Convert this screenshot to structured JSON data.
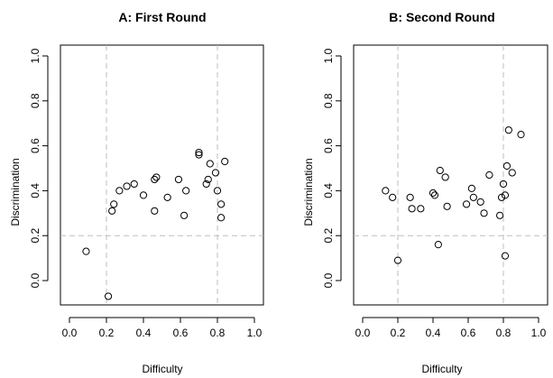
{
  "chart_data": [
    {
      "type": "scatter",
      "title": "A: First Round",
      "xlabel": "Difficulty",
      "ylabel": "Discrimination",
      "xlim": [
        0,
        1
      ],
      "ylim": [
        -0.1,
        1.0
      ],
      "xticks": [
        "0.0",
        "0.2",
        "0.4",
        "0.6",
        "0.8",
        "1.0"
      ],
      "yticks": [
        "0.0",
        "0.2",
        "0.4",
        "0.6",
        "0.8",
        "1.0"
      ],
      "reference_lines": {
        "x": [
          0.2,
          0.8
        ],
        "y": [
          0.2
        ]
      },
      "grid": false,
      "points": [
        {
          "x": 0.09,
          "y": 0.13
        },
        {
          "x": 0.21,
          "y": -0.07
        },
        {
          "x": 0.23,
          "y": 0.31
        },
        {
          "x": 0.24,
          "y": 0.34
        },
        {
          "x": 0.27,
          "y": 0.4
        },
        {
          "x": 0.31,
          "y": 0.42
        },
        {
          "x": 0.35,
          "y": 0.43
        },
        {
          "x": 0.4,
          "y": 0.38
        },
        {
          "x": 0.46,
          "y": 0.45
        },
        {
          "x": 0.47,
          "y": 0.46
        },
        {
          "x": 0.46,
          "y": 0.31
        },
        {
          "x": 0.53,
          "y": 0.37
        },
        {
          "x": 0.59,
          "y": 0.45
        },
        {
          "x": 0.62,
          "y": 0.29
        },
        {
          "x": 0.63,
          "y": 0.4
        },
        {
          "x": 0.7,
          "y": 0.57
        },
        {
          "x": 0.7,
          "y": 0.56
        },
        {
          "x": 0.74,
          "y": 0.43
        },
        {
          "x": 0.75,
          "y": 0.45
        },
        {
          "x": 0.76,
          "y": 0.52
        },
        {
          "x": 0.79,
          "y": 0.48
        },
        {
          "x": 0.8,
          "y": 0.4
        },
        {
          "x": 0.82,
          "y": 0.34
        },
        {
          "x": 0.82,
          "y": 0.28
        },
        {
          "x": 0.84,
          "y": 0.53
        }
      ]
    },
    {
      "type": "scatter",
      "title": "B: Second Round",
      "xlabel": "Difficulty",
      "ylabel": "Discrimination",
      "xlim": [
        0,
        1
      ],
      "ylim": [
        -0.1,
        1.0
      ],
      "xticks": [
        "0.0",
        "0.2",
        "0.4",
        "0.6",
        "0.8",
        "1.0"
      ],
      "yticks": [
        "0.0",
        "0.2",
        "0.4",
        "0.6",
        "0.8",
        "1.0"
      ],
      "reference_lines": {
        "x": [
          0.2,
          0.8
        ],
        "y": [
          0.2
        ]
      },
      "grid": false,
      "points": [
        {
          "x": 0.13,
          "y": 0.4
        },
        {
          "x": 0.17,
          "y": 0.37
        },
        {
          "x": 0.2,
          "y": 0.09
        },
        {
          "x": 0.27,
          "y": 0.37
        },
        {
          "x": 0.28,
          "y": 0.32
        },
        {
          "x": 0.33,
          "y": 0.32
        },
        {
          "x": 0.4,
          "y": 0.39
        },
        {
          "x": 0.41,
          "y": 0.38
        },
        {
          "x": 0.43,
          "y": 0.16
        },
        {
          "x": 0.44,
          "y": 0.49
        },
        {
          "x": 0.47,
          "y": 0.46
        },
        {
          "x": 0.48,
          "y": 0.33
        },
        {
          "x": 0.59,
          "y": 0.34
        },
        {
          "x": 0.62,
          "y": 0.41
        },
        {
          "x": 0.63,
          "y": 0.37
        },
        {
          "x": 0.67,
          "y": 0.35
        },
        {
          "x": 0.69,
          "y": 0.3
        },
        {
          "x": 0.72,
          "y": 0.47
        },
        {
          "x": 0.78,
          "y": 0.29
        },
        {
          "x": 0.79,
          "y": 0.37
        },
        {
          "x": 0.81,
          "y": 0.38
        },
        {
          "x": 0.8,
          "y": 0.43
        },
        {
          "x": 0.81,
          "y": 0.11
        },
        {
          "x": 0.82,
          "y": 0.51
        },
        {
          "x": 0.85,
          "y": 0.48
        },
        {
          "x": 0.83,
          "y": 0.67
        },
        {
          "x": 0.9,
          "y": 0.65
        }
      ]
    }
  ]
}
